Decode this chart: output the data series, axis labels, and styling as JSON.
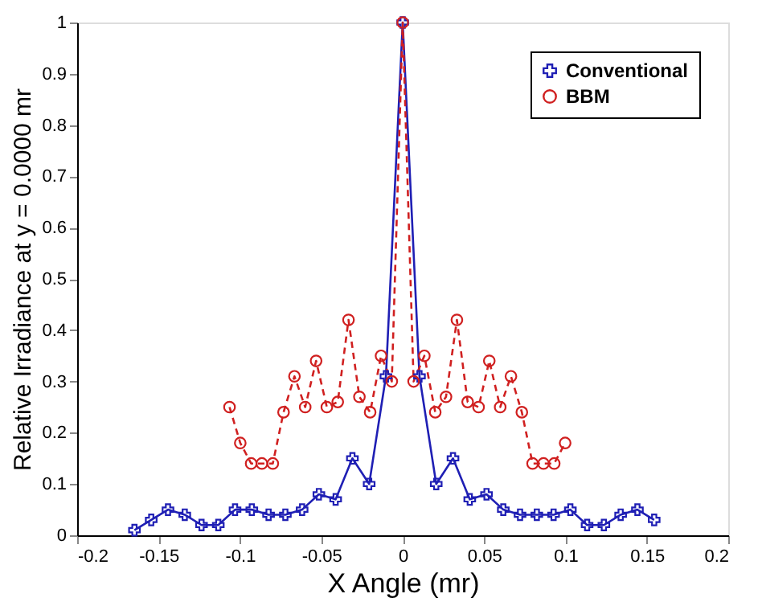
{
  "chart_data": {
    "type": "line",
    "xlabel": "X Angle (mr)",
    "ylabel": "Relative Irradiance at y = 0.0000 mr",
    "xlim": [
      -0.2,
      0.2
    ],
    "xticks": [
      -0.2,
      -0.15,
      -0.1,
      -0.05,
      0,
      0.05,
      0.1,
      0.15,
      0.2
    ],
    "ylim": [
      0,
      1
    ],
    "yticks": [
      0,
      0.1,
      0.2,
      0.3,
      0.4,
      0.5,
      0.6,
      0.7,
      0.8,
      0.9,
      1
    ],
    "grid": false,
    "legend": "top right",
    "series": [
      {
        "name": "Conventional",
        "color": "#1f1fb4",
        "marker": "cross",
        "line_style": "solid",
        "x": [
          -0.1648,
          -0.1545,
          -0.1442,
          -0.1339,
          -0.1236,
          -0.1133,
          -0.103,
          -0.0927,
          -0.0824,
          -0.0721,
          -0.0618,
          -0.0515,
          -0.0412,
          -0.0309,
          -0.0206,
          -0.0103,
          0,
          0.0103,
          0.0206,
          0.0309,
          0.0412,
          0.0515,
          0.0618,
          0.0721,
          0.0824,
          0.0927,
          0.103,
          0.1133,
          0.1236,
          0.1339,
          0.1442,
          0.1545
        ],
        "values": [
          0.01,
          0.03,
          0.05,
          0.04,
          0.02,
          0.02,
          0.05,
          0.05,
          0.04,
          0.04,
          0.05,
          0.08,
          0.07,
          0.15,
          0.1,
          0.31,
          1.0,
          0.31,
          0.1,
          0.15,
          0.07,
          0.08,
          0.05,
          0.04,
          0.04,
          0.04,
          0.05,
          0.02,
          0.02,
          0.04,
          0.05,
          0.03
        ]
      },
      {
        "name": "BBM",
        "color": "#d02020",
        "marker": "circle",
        "line_style": "dashed",
        "x": [
          -0.1064,
          -0.0998,
          -0.0931,
          -0.0865,
          -0.0798,
          -0.0732,
          -0.0665,
          -0.0599,
          -0.0532,
          -0.0466,
          -0.0399,
          -0.0333,
          -0.0266,
          -0.02,
          -0.0133,
          -0.0067,
          0,
          0.0067,
          0.0133,
          0.02,
          0.0266,
          0.0333,
          0.0399,
          0.0466,
          0.0532,
          0.0599,
          0.0665,
          0.0732,
          0.0798,
          0.0865,
          0.0931,
          0.0998
        ],
        "values": [
          0.25,
          0.18,
          0.14,
          0.14,
          0.14,
          0.24,
          0.31,
          0.25,
          0.34,
          0.25,
          0.26,
          0.42,
          0.27,
          0.24,
          0.35,
          0.3,
          1.0,
          0.3,
          0.35,
          0.24,
          0.27,
          0.42,
          0.26,
          0.25,
          0.34,
          0.25,
          0.31,
          0.24,
          0.14,
          0.14,
          0.14,
          0.18
        ]
      }
    ]
  }
}
